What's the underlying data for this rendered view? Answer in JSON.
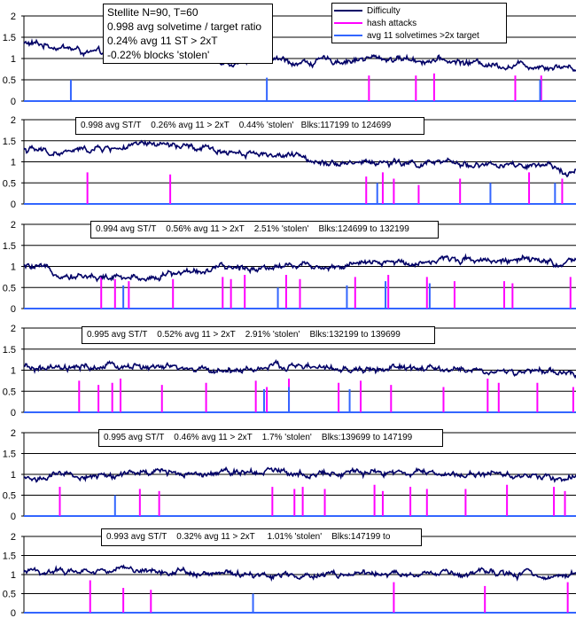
{
  "chart_data": [
    {
      "type": "line",
      "ylim": [
        0,
        2
      ],
      "yticks": [
        "0",
        "0.5",
        "1",
        "1.5",
        "2"
      ],
      "grid": true,
      "annotation": [
        "Stellite N=90, T=60",
        "0.998 avg solvetime / target ratio",
        "0.24% avg 11 ST > 2xT",
        "-0.22% blocks 'stolen'"
      ],
      "legend": {
        "position": "top",
        "entries": [
          {
            "label": "Difficulty",
            "color": "#000066"
          },
          {
            "label": "hash attacks",
            "color": "#ff00ff"
          },
          {
            "label": "avg 11 solvetimes >2x target",
            "color": "#3366ff"
          }
        ]
      },
      "difficulty_profile": [
        1.35,
        1.3,
        1.1,
        1.15,
        1.05,
        1.0,
        0.95,
        1.0,
        0.9,
        0.95,
        1.0,
        1.0,
        0.95,
        0.9,
        0.85,
        0.85,
        0.8
      ],
      "hash_attacks": [
        {
          "x": 0.625,
          "y": 0.6
        },
        {
          "x": 0.71,
          "y": 0.6
        },
        {
          "x": 0.743,
          "y": 0.65
        },
        {
          "x": 0.89,
          "y": 0.6
        },
        {
          "x": 0.937,
          "y": 0.6
        }
      ],
      "slow_solves": [
        {
          "x": 0.085,
          "y": 0.5
        },
        {
          "x": 0.44,
          "y": 0.55
        },
        {
          "x": 0.935,
          "y": 0.5
        }
      ]
    },
    {
      "type": "line",
      "ylim": [
        0,
        2
      ],
      "yticks": [
        "0",
        "0.5",
        "1",
        "1.5",
        "2"
      ],
      "grid": true,
      "annotation": "0.998 avg ST/T    0.26% avg 11 > 2xT    0.44% 'stolen'   Blks:117199 to 124699",
      "difficulty_profile": [
        1.3,
        1.2,
        1.3,
        1.35,
        1.4,
        1.3,
        1.25,
        1.2,
        1.1,
        1.0,
        1.0,
        0.95,
        0.95,
        0.95,
        0.9,
        0.85,
        0.8
      ],
      "hash_attacks": [
        {
          "x": 0.115,
          "y": 0.75
        },
        {
          "x": 0.265,
          "y": 0.7
        },
        {
          "x": 0.62,
          "y": 0.65
        },
        {
          "x": 0.65,
          "y": 0.75
        },
        {
          "x": 0.67,
          "y": 0.6
        },
        {
          "x": 0.715,
          "y": 0.45
        },
        {
          "x": 0.79,
          "y": 0.6
        },
        {
          "x": 0.915,
          "y": 0.75
        },
        {
          "x": 0.975,
          "y": 0.6
        }
      ],
      "slow_solves": [
        {
          "x": 0.64,
          "y": 0.5
        },
        {
          "x": 0.845,
          "y": 0.5
        },
        {
          "x": 0.962,
          "y": 0.5
        }
      ]
    },
    {
      "type": "line",
      "ylim": [
        0,
        2
      ],
      "yticks": [
        "0",
        "0.5",
        "1",
        "1.5",
        "2"
      ],
      "grid": true,
      "annotation": "0.994 avg ST/T    0.56% avg 11 > 2xT    2.51% 'stolen'    Blks:124699 to 132199",
      "difficulty_profile": [
        1.0,
        0.85,
        0.75,
        0.7,
        0.8,
        0.9,
        0.95,
        1.0,
        1.05,
        1.0,
        1.05,
        1.1,
        1.15,
        1.2,
        1.15,
        1.1,
        1.05
      ],
      "hash_attacks": [
        {
          "x": 0.14,
          "y": 0.75
        },
        {
          "x": 0.165,
          "y": 0.7
        },
        {
          "x": 0.19,
          "y": 0.65
        },
        {
          "x": 0.27,
          "y": 0.7
        },
        {
          "x": 0.36,
          "y": 0.75
        },
        {
          "x": 0.375,
          "y": 0.7
        },
        {
          "x": 0.4,
          "y": 0.8
        },
        {
          "x": 0.475,
          "y": 0.8
        },
        {
          "x": 0.5,
          "y": 0.7
        },
        {
          "x": 0.6,
          "y": 0.75
        },
        {
          "x": 0.66,
          "y": 0.8
        },
        {
          "x": 0.73,
          "y": 0.75
        },
        {
          "x": 0.78,
          "y": 0.65
        },
        {
          "x": 0.87,
          "y": 0.65
        },
        {
          "x": 0.885,
          "y": 0.6
        },
        {
          "x": 0.99,
          "y": 0.75
        }
      ],
      "slow_solves": [
        {
          "x": 0.18,
          "y": 0.55
        },
        {
          "x": 0.46,
          "y": 0.5
        },
        {
          "x": 0.585,
          "y": 0.55
        },
        {
          "x": 0.655,
          "y": 0.65
        },
        {
          "x": 0.735,
          "y": 0.6
        }
      ]
    },
    {
      "type": "line",
      "ylim": [
        0,
        2
      ],
      "yticks": [
        "0",
        "0.5",
        "1",
        "1.5",
        "2"
      ],
      "grid": true,
      "annotation": "0.995 avg ST/T    0.52% avg 11 > 2xT    2.91% 'stolen'    Blks:132199 to 139699",
      "difficulty_profile": [
        1.05,
        1.0,
        1.05,
        1.1,
        1.05,
        1.0,
        1.0,
        1.05,
        1.1,
        1.0,
        1.0,
        1.05,
        1.0,
        1.0,
        0.95,
        0.95,
        0.9
      ],
      "hash_attacks": [
        {
          "x": 0.1,
          "y": 0.75
        },
        {
          "x": 0.135,
          "y": 0.65
        },
        {
          "x": 0.16,
          "y": 0.7
        },
        {
          "x": 0.175,
          "y": 0.8
        },
        {
          "x": 0.25,
          "y": 0.65
        },
        {
          "x": 0.33,
          "y": 0.7
        },
        {
          "x": 0.42,
          "y": 0.75
        },
        {
          "x": 0.44,
          "y": 0.6
        },
        {
          "x": 0.48,
          "y": 0.8
        },
        {
          "x": 0.57,
          "y": 0.7
        },
        {
          "x": 0.61,
          "y": 0.75
        },
        {
          "x": 0.665,
          "y": 0.65
        },
        {
          "x": 0.76,
          "y": 0.6
        },
        {
          "x": 0.84,
          "y": 0.8
        },
        {
          "x": 0.86,
          "y": 0.7
        },
        {
          "x": 0.93,
          "y": 0.7
        },
        {
          "x": 0.995,
          "y": 0.6
        }
      ],
      "slow_solves": [
        {
          "x": 0.435,
          "y": 0.55
        },
        {
          "x": 0.48,
          "y": 0.6
        },
        {
          "x": 0.59,
          "y": 0.55
        }
      ]
    },
    {
      "type": "line",
      "ylim": [
        0,
        2
      ],
      "yticks": [
        "0",
        "0.5",
        "1",
        "1.5",
        "2"
      ],
      "grid": true,
      "annotation": "0.995 avg ST/T    0.46% avg 11 > 2xT    1.7% 'stolen'    Blks:139699 to 147199",
      "difficulty_profile": [
        0.9,
        0.95,
        0.95,
        1.0,
        1.05,
        1.05,
        1.1,
        1.1,
        1.05,
        1.05,
        1.0,
        1.05,
        1.0,
        1.0,
        1.0,
        0.95,
        0.95
      ],
      "hash_attacks": [
        {
          "x": 0.065,
          "y": 0.7
        },
        {
          "x": 0.21,
          "y": 0.65
        },
        {
          "x": 0.245,
          "y": 0.6
        },
        {
          "x": 0.45,
          "y": 0.7
        },
        {
          "x": 0.49,
          "y": 0.65
        },
        {
          "x": 0.505,
          "y": 0.7
        },
        {
          "x": 0.545,
          "y": 0.65
        },
        {
          "x": 0.635,
          "y": 0.75
        },
        {
          "x": 0.65,
          "y": 0.6
        },
        {
          "x": 0.7,
          "y": 0.7
        },
        {
          "x": 0.73,
          "y": 0.65
        },
        {
          "x": 0.8,
          "y": 0.65
        },
        {
          "x": 0.875,
          "y": 0.75
        },
        {
          "x": 0.96,
          "y": 0.7
        },
        {
          "x": 0.98,
          "y": 0.6
        }
      ],
      "slow_solves": [
        {
          "x": 0.165,
          "y": 0.5
        }
      ]
    },
    {
      "type": "line",
      "ylim": [
        0,
        2
      ],
      "yticks": [
        "0",
        "0.5",
        "1",
        "1.5",
        "2"
      ],
      "grid": true,
      "annotation": "0.993 avg ST/T    0.32% avg 11 > 2xT     1.01% 'stolen'    Blks:147199 to",
      "difficulty_profile": [
        1.05,
        1.1,
        1.1,
        1.15,
        1.1,
        1.05,
        1.0,
        1.0,
        1.0,
        1.0,
        1.0,
        1.0,
        1.0,
        1.0,
        1.0,
        1.0,
        1.0
      ],
      "hash_attacks": [
        {
          "x": 0.12,
          "y": 0.85
        },
        {
          "x": 0.18,
          "y": 0.65
        },
        {
          "x": 0.23,
          "y": 0.6
        },
        {
          "x": 0.67,
          "y": 0.8
        },
        {
          "x": 0.835,
          "y": 0.7
        },
        {
          "x": 0.985,
          "y": 0.8
        }
      ],
      "slow_solves": [
        {
          "x": 0.415,
          "y": 0.5
        }
      ]
    }
  ]
}
